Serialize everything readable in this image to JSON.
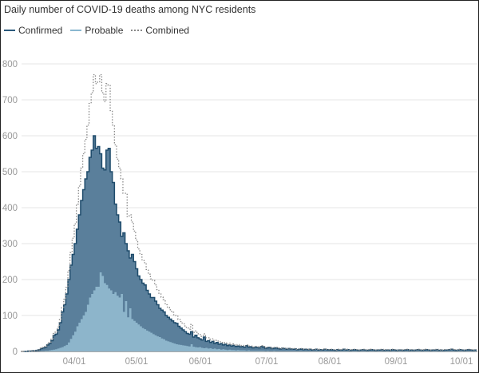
{
  "title": "Daily number of COVID-19 deaths among NYC residents",
  "legend": [
    {
      "label": "Confirmed",
      "color": "#2b5a7c",
      "style": "solid"
    },
    {
      "label": "Probable",
      "color": "#8ab8d0",
      "style": "solid"
    },
    {
      "label": "Combined",
      "color": "#888888",
      "style": "dotted"
    }
  ],
  "colors": {
    "confirmed_fill": "#5a7f9b",
    "confirmed_line": "#1e4b6b",
    "probable_fill": "#8db5cb",
    "probable_line": "#8ab8d0",
    "combined_line": "#8a8a8a",
    "grid": "#e6e6e6",
    "tick_text": "#999999"
  },
  "chart_data": {
    "type": "area",
    "title": "Daily number of COVID-19 deaths among NYC residents",
    "xlabel": "",
    "ylabel": "",
    "ylim": [
      0,
      800
    ],
    "yticks": [
      0,
      100,
      200,
      300,
      400,
      500,
      600,
      700,
      800
    ],
    "xticks": [
      "04/01",
      "05/01",
      "06/01",
      "07/01",
      "08/01",
      "09/01",
      "10/01"
    ],
    "grid": true,
    "legend_position": "top-left",
    "x_start": "03/08",
    "x_end": "10/15",
    "series": [
      {
        "name": "Confirmed",
        "values": [
          0,
          0,
          1,
          1,
          2,
          2,
          3,
          5,
          8,
          10,
          12,
          18,
          22,
          30,
          45,
          48,
          60,
          80,
          110,
          130,
          160,
          200,
          240,
          270,
          300,
          340,
          380,
          420,
          450,
          480,
          500,
          540,
          560,
          600,
          565,
          570,
          550,
          510,
          505,
          560,
          565,
          500,
          470,
          410,
          380,
          360,
          320,
          330,
          300,
          280,
          260,
          270,
          250,
          230,
          210,
          200,
          190,
          185,
          170,
          160,
          150,
          150,
          140,
          130,
          120,
          115,
          110,
          100,
          95,
          90,
          85,
          80,
          78,
          70,
          65,
          60,
          55,
          50,
          48,
          55,
          40,
          45,
          38,
          35,
          32,
          40,
          28,
          30,
          25,
          28,
          22,
          25,
          20,
          22,
          18,
          20,
          16,
          18,
          15,
          17,
          14,
          15,
          13,
          14,
          12,
          16,
          12,
          13,
          10,
          12,
          11,
          10,
          14,
          12,
          9,
          10,
          11,
          8,
          9,
          10,
          8,
          7,
          9,
          8,
          6,
          8,
          7,
          6,
          7,
          5,
          6,
          7,
          5,
          6,
          5,
          6,
          4,
          5,
          6,
          4,
          5,
          4,
          6,
          5,
          4,
          5,
          4,
          3,
          5,
          4,
          4,
          6,
          4,
          5,
          3,
          4,
          5,
          4,
          3,
          4,
          5,
          4,
          3,
          4,
          5,
          4,
          3,
          4,
          4,
          5,
          3,
          4,
          4,
          3,
          5,
          4,
          3,
          4,
          4,
          3,
          4,
          5,
          3,
          4,
          3,
          4,
          5,
          4,
          3,
          4,
          5,
          4,
          3,
          4,
          4,
          5,
          3,
          4,
          3,
          4,
          4,
          5,
          6,
          4,
          3,
          4,
          5,
          4,
          3,
          4,
          5,
          4,
          3,
          4,
          4,
          3,
          4,
          5,
          4,
          3
        ]
      },
      {
        "name": "Probable",
        "values": [
          0,
          0,
          0,
          0,
          0,
          0,
          0,
          0,
          1,
          1,
          2,
          2,
          3,
          4,
          5,
          6,
          8,
          10,
          12,
          15,
          18,
          25,
          35,
          45,
          55,
          70,
          80,
          90,
          100,
          110,
          130,
          150,
          160,
          170,
          180,
          180,
          220,
          210,
          190,
          185,
          175,
          170,
          160,
          165,
          155,
          150,
          160,
          110,
          140,
          95,
          120,
          90,
          85,
          80,
          75,
          70,
          65,
          62,
          58,
          55,
          52,
          48,
          45,
          42,
          40,
          36,
          34,
          30,
          28,
          26,
          24,
          22,
          20,
          19,
          18,
          17,
          16,
          15,
          14,
          20,
          13,
          12,
          11,
          12,
          10,
          9,
          10,
          8,
          9,
          7,
          8,
          6,
          7,
          5,
          6,
          5,
          4,
          5,
          4,
          4,
          3,
          4,
          3,
          3,
          3,
          2,
          3,
          2,
          2,
          2,
          2,
          2,
          2,
          2,
          1,
          2,
          1,
          1,
          2,
          1,
          1,
          1,
          1,
          1,
          1,
          1,
          1,
          1,
          1,
          1,
          1,
          1,
          1,
          1,
          1,
          1,
          1,
          1,
          1,
          1,
          1,
          1,
          1,
          1,
          1,
          1,
          1,
          1,
          1,
          1,
          1,
          1,
          1,
          1,
          1,
          1,
          1,
          1,
          1,
          1,
          1,
          1,
          1,
          1,
          1,
          1,
          1,
          1,
          1,
          1,
          1,
          1,
          1,
          1,
          1,
          1,
          1,
          1,
          1,
          1,
          1,
          1,
          1,
          1,
          1,
          1,
          1,
          1,
          1,
          1,
          1,
          1,
          1,
          1,
          1,
          1,
          1,
          1,
          1,
          1,
          1,
          1,
          1,
          1,
          1,
          1,
          1,
          1,
          1,
          1,
          1,
          1,
          1,
          1,
          1,
          1,
          1,
          1,
          1,
          1,
          1,
          1
        ]
      },
      {
        "name": "Combined",
        "derived": "Confirmed + Probable"
      }
    ]
  }
}
